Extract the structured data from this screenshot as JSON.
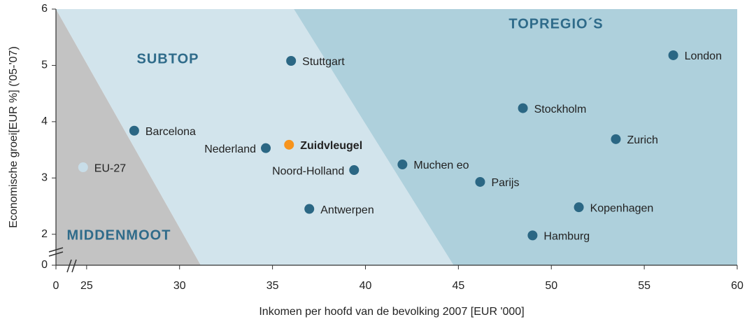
{
  "chart_data": {
    "type": "scatter",
    "x_label": "Inkomen per hoofd van de bevolking 2007 [EUR '000]",
    "y_label": "Economische groei[EUR %] ('05-'07)",
    "xlim": [
      23.35,
      60
    ],
    "ylim": [
      1.45,
      6
    ],
    "xticks": [
      0,
      25,
      30,
      35,
      40,
      45,
      50,
      55,
      60
    ],
    "yticks": [
      0,
      2,
      3,
      4,
      5,
      6
    ],
    "axis_break": true,
    "regions": [
      {
        "name": "MIDDENMOOT",
        "color": "#c3c3c3",
        "top": [
          23.35,
          23.35
        ],
        "bottom": [
          23.35,
          31.14
        ]
      },
      {
        "name": "SUBTOP",
        "color": "#d2e4ec",
        "top": [
          23.35,
          36.15
        ],
        "bottom": [
          31.14,
          44.74
        ]
      },
      {
        "name": "TOPREGIO´S",
        "color": "#aed0dc",
        "top": [
          36.15,
          60
        ],
        "bottom": [
          44.74,
          60
        ]
      }
    ],
    "labels": [
      "London",
      "Stuttgart",
      "Stockholm",
      "Barcelona",
      "Zurich",
      "Zuidvleugel",
      "Nederland",
      "EU-27",
      "Muchen eo",
      "Noord-Holland",
      "Parijs",
      "Kopenhagen",
      "Antwerpen",
      "Hamburg"
    ],
    "x": [
      56.56,
      36.0,
      48.47,
      27.56,
      53.47,
      35.89,
      34.64,
      24.81,
      41.99,
      39.39,
      46.17,
      51.48,
      36.98,
      48.99
    ],
    "values": [
      5.18,
      5.08,
      4.24,
      3.84,
      3.69,
      3.59,
      3.53,
      3.19,
      3.24,
      3.14,
      2.93,
      2.48,
      2.45,
      1.98
    ],
    "colors": [
      "#2b6784",
      "#2b6784",
      "#2b6784",
      "#2b6784",
      "#2b6784",
      "#f7941d",
      "#2b6784",
      "#c8dde8",
      "#2b6784",
      "#2b6784",
      "#2b6784",
      "#2b6784",
      "#2b6784",
      "#2b6784"
    ]
  }
}
